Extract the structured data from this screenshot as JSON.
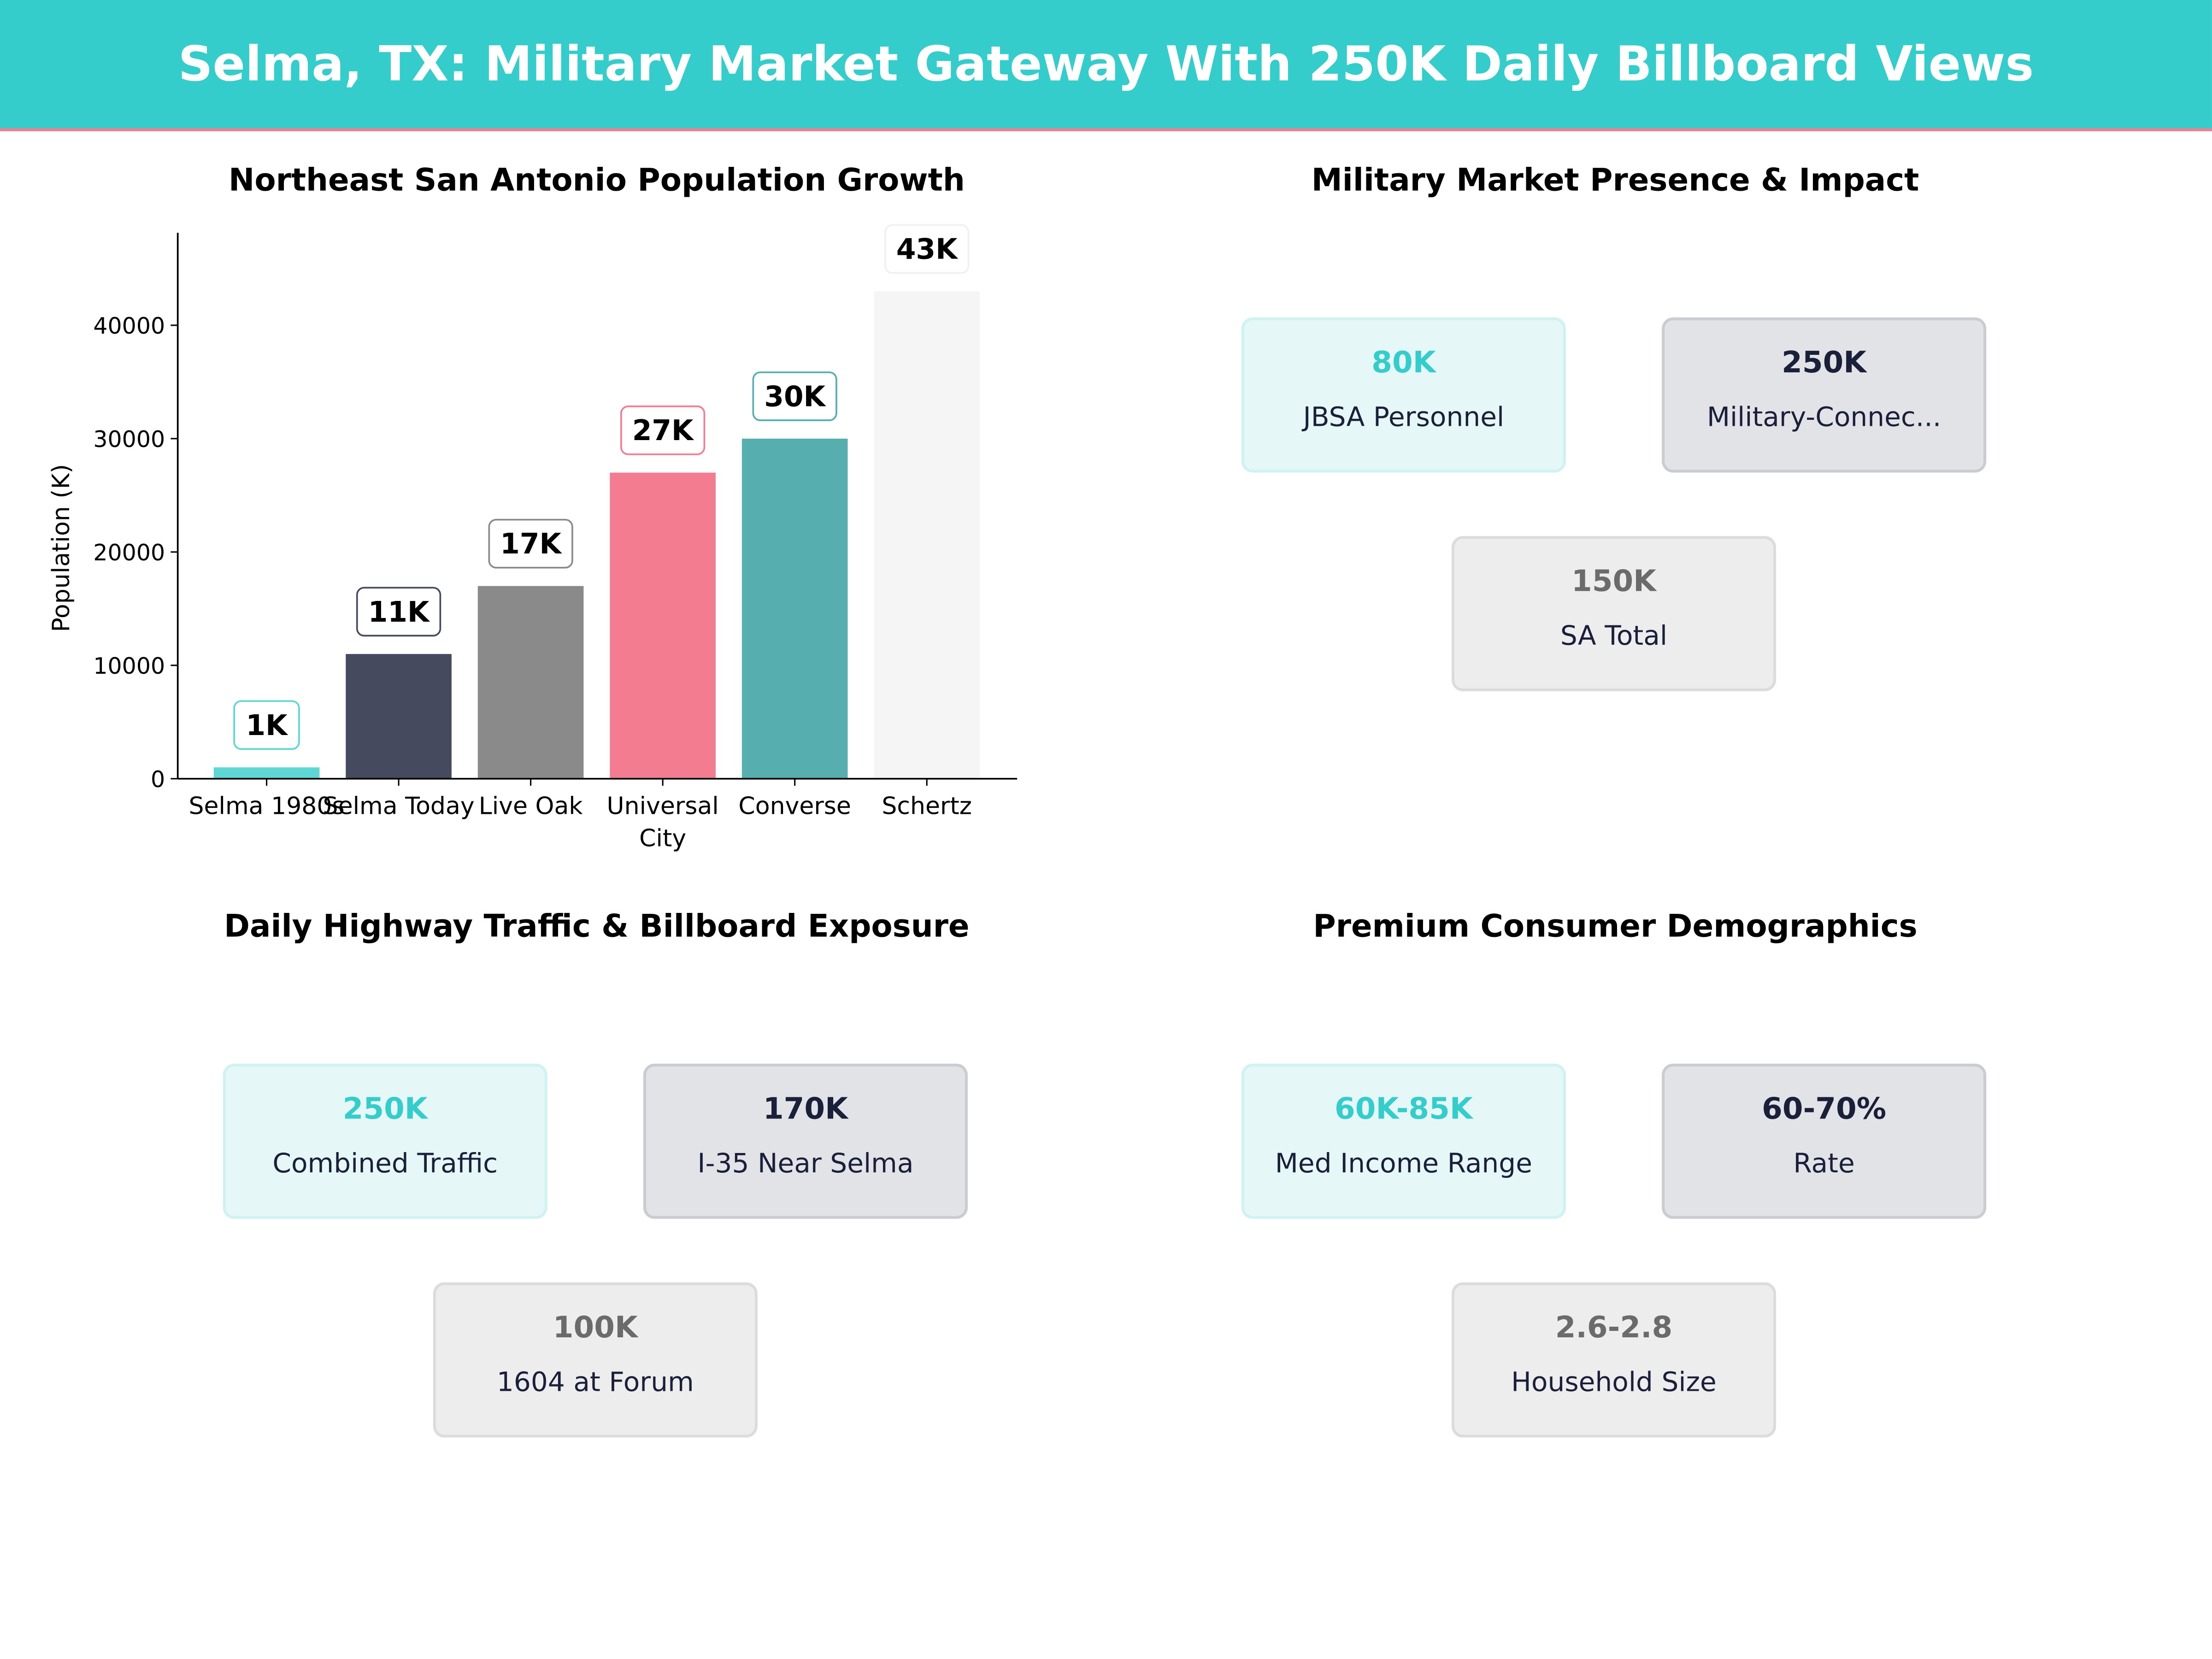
{
  "header": {
    "title": "Selma, TX: Military Market Gateway With 250K Daily Billboard Views"
  },
  "chart_data": {
    "type": "bar",
    "title": "Northeast San Antonio Population Growth",
    "xlabel": "",
    "ylabel": "Population (K)",
    "categories": [
      "Selma 1980s",
      "Selma Today",
      "Live Oak",
      "Universal\nCity",
      "Converse",
      "Schertz"
    ],
    "values": [
      1000,
      11000,
      17000,
      27000,
      30000,
      43000
    ],
    "data_labels": [
      "1K",
      "11K",
      "17K",
      "27K",
      "30K",
      "43K"
    ],
    "colors": [
      "#5ED6D3",
      "#464A5E",
      "#8A8A8A",
      "#F47C90",
      "#56AEAE",
      "#F5F5F5"
    ],
    "label_borders": [
      "#5ED6D3",
      "#464A5E",
      "#8A8A8A",
      "#F47C90",
      "#56AEAE",
      "#F0F0F0"
    ],
    "yticks": [
      0,
      10000,
      20000,
      30000,
      40000
    ],
    "ylim": [
      0,
      48160
    ],
    "grid": false
  },
  "panels": [
    {
      "title": "Military Market Presence & Impact",
      "cards": [
        {
          "value": "80K",
          "label": "JBSA Personnel"
        },
        {
          "value": "250K",
          "label": "Military-Connec..."
        },
        {
          "value": "150K",
          "label": "SA Total"
        }
      ]
    },
    {
      "title": "Daily Highway Traffic & Billboard Exposure",
      "cards": [
        {
          "value": "250K",
          "label": "Combined Traffic"
        },
        {
          "value": "170K",
          "label": "I-35 Near Selma"
        },
        {
          "value": "100K",
          "label": "1604 at Forum"
        }
      ]
    },
    {
      "title": "Premium Consumer Demographics",
      "cards": [
        {
          "value": "60K-85K",
          "label": "Med Income Range"
        },
        {
          "value": "60-70%",
          "label": "Rate"
        },
        {
          "value": "2.6-2.8",
          "label": "Household Size"
        }
      ]
    }
  ]
}
